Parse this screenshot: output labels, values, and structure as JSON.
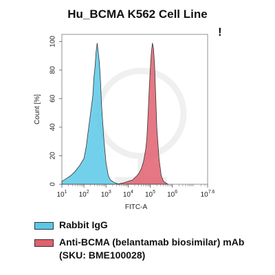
{
  "chart_data": {
    "type": "area",
    "title": "Hu_BCMA K562 Cell Line",
    "xlabel": "FITC-A",
    "ylabel": "Count [%]",
    "x_scale": "log",
    "xlim": [
      1,
      7.6
    ],
    "ylim": [
      0,
      105
    ],
    "x_ticks": [
      {
        "value": 1,
        "base": "10",
        "exp": "1"
      },
      {
        "value": 2,
        "base": "10",
        "exp": "2"
      },
      {
        "value": 3,
        "base": "10",
        "exp": "3"
      },
      {
        "value": 4,
        "base": "10",
        "exp": "4"
      },
      {
        "value": 5,
        "base": "10",
        "exp": "5"
      },
      {
        "value": 6,
        "base": "10",
        "exp": "6"
      },
      {
        "value": 7.6,
        "base": "10",
        "exp": "7.6"
      }
    ],
    "y_ticks": [
      0,
      20,
      40,
      60,
      80,
      100
    ],
    "grid": false,
    "legend_position": "bottom",
    "series": [
      {
        "name": "Rabbit IgG",
        "color": "#5bc8e8",
        "x": [
          1.0,
          1.2,
          1.4,
          1.6,
          1.8,
          2.0,
          2.1,
          2.2,
          2.3,
          2.4,
          2.45,
          2.5,
          2.55,
          2.6,
          2.65,
          2.7,
          2.75,
          2.8,
          2.9,
          3.0,
          3.1,
          3.2,
          3.4,
          3.6
        ],
        "y": [
          2,
          4,
          6,
          9,
          13,
          18,
          26,
          38,
          50,
          62,
          75,
          82,
          93,
          99,
          92,
          85,
          72,
          55,
          32,
          15,
          6,
          3,
          1,
          0
        ]
      },
      {
        "name": "Anti-BCMA (belantamab biosimilar) mAb (SKU: BME100028)",
        "color": "#e0606e",
        "x": [
          3.5,
          3.8,
          4.0,
          4.2,
          4.4,
          4.5,
          4.6,
          4.7,
          4.8,
          4.85,
          4.9,
          4.95,
          5.0,
          5.05,
          5.1,
          5.15,
          5.2,
          5.25,
          5.3,
          5.4,
          5.5,
          5.6,
          5.8
        ],
        "y": [
          0,
          1,
          2,
          3,
          6,
          8,
          11,
          16,
          25,
          33,
          48,
          65,
          80,
          92,
          99,
          95,
          83,
          62,
          40,
          18,
          6,
          2,
          0
        ]
      }
    ]
  }
}
